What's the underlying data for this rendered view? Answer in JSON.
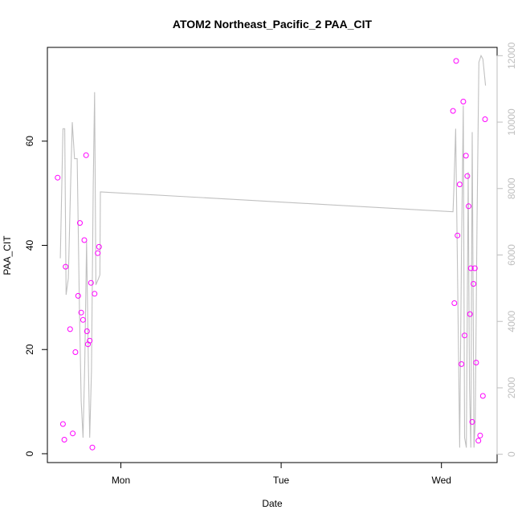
{
  "chart_data": {
    "type": "scatter",
    "title": "ATOM2 Northeast_Pacific_2 PAA_CIT",
    "xlabel": "Date",
    "ylabel": "PAA_CIT",
    "x_ticks": [
      "Mon",
      "Tue",
      "Wed"
    ],
    "y_ticks": [
      "0",
      "20",
      "40",
      "60"
    ],
    "y2_ticks": [
      "0",
      "2000",
      "4000",
      "6000",
      "8000",
      "10000",
      "12000"
    ],
    "xlim_hours": [
      -16.5,
      84.5
    ],
    "ylim": [
      -1.7,
      78.0
    ],
    "y2lim": [
      -250,
      12250
    ],
    "colors": {
      "points": "#ff00ff",
      "line": "#c0c0c0",
      "axis": "#000000",
      "right_axis": "#bebebe"
    },
    "series": [
      {
        "points": [
          {
            "hour": -14.2,
            "y": 53.0
          },
          {
            "hour": -13.0,
            "y": 5.7
          },
          {
            "hour": -12.7,
            "y": 2.7
          },
          {
            "hour": -12.4,
            "y": 35.9
          },
          {
            "hour": -11.4,
            "y": 23.9
          },
          {
            "hour": -10.8,
            "y": 3.9
          },
          {
            "hour": -10.2,
            "y": 19.5
          },
          {
            "hour": -9.6,
            "y": 30.3
          },
          {
            "hour": -9.2,
            "y": 44.3
          },
          {
            "hour": -8.9,
            "y": 27.1
          },
          {
            "hour": -8.5,
            "y": 25.7
          },
          {
            "hour": -8.2,
            "y": 41.0
          },
          {
            "hour": -7.8,
            "y": 57.3
          },
          {
            "hour": -7.6,
            "y": 23.5
          },
          {
            "hour": -7.4,
            "y": 21.0
          },
          {
            "hour": -7.0,
            "y": 21.7
          },
          {
            "hour": -6.7,
            "y": 32.8
          },
          {
            "hour": -6.4,
            "y": 1.2
          },
          {
            "hour": -5.9,
            "y": 30.7
          },
          {
            "hour": -5.2,
            "y": 38.5
          },
          {
            "hour": -4.9,
            "y": 39.7
          },
          {
            "hour": 74.6,
            "y": 65.8
          },
          {
            "hour": 74.9,
            "y": 28.9
          },
          {
            "hour": 75.3,
            "y": 75.4
          },
          {
            "hour": 75.6,
            "y": 41.9
          },
          {
            "hour": 76.1,
            "y": 51.7
          },
          {
            "hour": 76.5,
            "y": 17.2
          },
          {
            "hour": 76.9,
            "y": 67.6
          },
          {
            "hour": 77.2,
            "y": 22.7
          },
          {
            "hour": 77.5,
            "y": 57.2
          },
          {
            "hour": 77.8,
            "y": 53.3
          },
          {
            "hour": 78.1,
            "y": 47.5
          },
          {
            "hour": 78.4,
            "y": 26.8
          },
          {
            "hour": 78.6,
            "y": 35.6
          },
          {
            "hour": 78.9,
            "y": 6.1
          },
          {
            "hour": 79.2,
            "y": 32.6
          },
          {
            "hour": 79.5,
            "y": 35.6
          },
          {
            "hour": 79.8,
            "y": 17.5
          },
          {
            "hour": 80.3,
            "y": 2.5
          },
          {
            "hour": 80.7,
            "y": 3.5
          },
          {
            "hour": 81.3,
            "y": 11.1
          },
          {
            "hour": 81.8,
            "y": 64.2
          }
        ]
      },
      {
        "axis": "right",
        "line": [
          {
            "hour": -13.6,
            "y": 5900
          },
          {
            "hour": -13.0,
            "y": 9800
          },
          {
            "hour": -12.6,
            "y": 9800
          },
          {
            "hour": -12.3,
            "y": 4800
          },
          {
            "hour": -11.8,
            "y": 5300
          },
          {
            "hour": -11.3,
            "y": 8000
          },
          {
            "hour": -10.9,
            "y": 10000
          },
          {
            "hour": -10.4,
            "y": 8900
          },
          {
            "hour": -9.8,
            "y": 8900
          },
          {
            "hour": -9.3,
            "y": 4400
          },
          {
            "hour": -8.9,
            "y": 1600
          },
          {
            "hour": -8.5,
            "y": 500
          },
          {
            "hour": -8.1,
            "y": 2800
          },
          {
            "hour": -7.7,
            "y": 6400
          },
          {
            "hour": -7.3,
            "y": 2800
          },
          {
            "hour": -7.0,
            "y": 500
          },
          {
            "hour": -6.6,
            "y": 2500
          },
          {
            "hour": -6.2,
            "y": 8100
          },
          {
            "hour": -5.9,
            "y": 10900
          },
          {
            "hour": -5.6,
            "y": 5100
          },
          {
            "hour": -5.0,
            "y": 5300
          },
          {
            "hour": -4.7,
            "y": 5400
          },
          {
            "hour": -4.6,
            "y": 7900
          },
          {
            "hour": 74.6,
            "y": 7300
          },
          {
            "hour": 74.8,
            "y": 8000
          },
          {
            "hour": 75.2,
            "y": 9800
          },
          {
            "hour": 75.6,
            "y": 5500
          },
          {
            "hour": 76.1,
            "y": 200
          },
          {
            "hour": 76.5,
            "y": 6000
          },
          {
            "hour": 76.9,
            "y": 10500
          },
          {
            "hour": 77.2,
            "y": 500
          },
          {
            "hour": 77.6,
            "y": 200
          },
          {
            "hour": 78.0,
            "y": 8500
          },
          {
            "hour": 78.3,
            "y": 2000
          },
          {
            "hour": 78.6,
            "y": 200
          },
          {
            "hour": 78.9,
            "y": 9700
          },
          {
            "hour": 79.3,
            "y": 200
          },
          {
            "hour": 79.6,
            "y": 1000
          },
          {
            "hour": 80.0,
            "y": 7000
          },
          {
            "hour": 80.4,
            "y": 11800
          },
          {
            "hour": 80.9,
            "y": 12000
          },
          {
            "hour": 81.3,
            "y": 11900
          },
          {
            "hour": 81.9,
            "y": 11100
          }
        ]
      }
    ]
  }
}
